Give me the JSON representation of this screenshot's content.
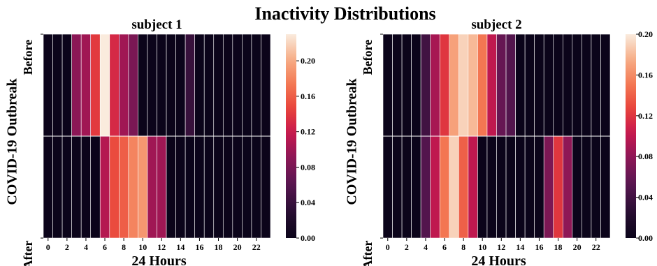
{
  "chart_data": {
    "type": "heatmap",
    "title": "Inactivity Distributions",
    "ylabel": "COVID-19 Outbreak",
    "xlabel": "24 Hours",
    "rows": [
      "Before",
      "After"
    ],
    "x_ticks": [
      "0",
      "2",
      "4",
      "6",
      "8",
      "10",
      "12",
      "14",
      "16",
      "18",
      "20",
      "22"
    ],
    "x": [
      0,
      1,
      2,
      3,
      4,
      5,
      6,
      7,
      8,
      9,
      10,
      11,
      12,
      13,
      14,
      15,
      16,
      17,
      18,
      19,
      20,
      21,
      22,
      23
    ],
    "colormap": "rocket",
    "panels": [
      {
        "subtitle": "subject 1",
        "vmax": 0.23,
        "colorbar_ticks": [
          "0.00",
          "0.04",
          "0.08",
          "0.12",
          "0.16",
          "0.20"
        ],
        "values": [
          [
            0,
            0,
            0,
            0.09,
            0.1,
            0.14,
            0.23,
            0.13,
            0.1,
            0.08,
            0,
            0,
            0,
            0,
            0,
            0.04,
            0,
            0,
            0,
            0,
            0,
            0,
            0,
            0
          ],
          [
            0,
            0,
            0,
            0,
            0,
            0,
            0.11,
            0.15,
            0.16,
            0.18,
            0.19,
            0.1,
            0.1,
            0,
            0,
            0,
            0,
            0,
            0,
            0,
            0,
            0,
            0,
            0
          ]
        ]
      },
      {
        "subtitle": "subject 2",
        "vmax": 0.2,
        "colorbar_ticks": [
          "0.00",
          "0.04",
          "0.08",
          "0.12",
          "0.16",
          "0.20"
        ],
        "values": [
          [
            0,
            0,
            0,
            0,
            0.04,
            0.09,
            0.12,
            0.17,
            0.19,
            0.18,
            0.15,
            0.1,
            0.06,
            0.05,
            0,
            0,
            0,
            0,
            0,
            0,
            0,
            0,
            0,
            0
          ],
          [
            0,
            0,
            0,
            0,
            0.05,
            0.1,
            0.15,
            0.19,
            0.14,
            0.1,
            0,
            0,
            0,
            0,
            0,
            0,
            0,
            0.07,
            0.12,
            0.08,
            0,
            0,
            0,
            0
          ]
        ]
      }
    ]
  }
}
